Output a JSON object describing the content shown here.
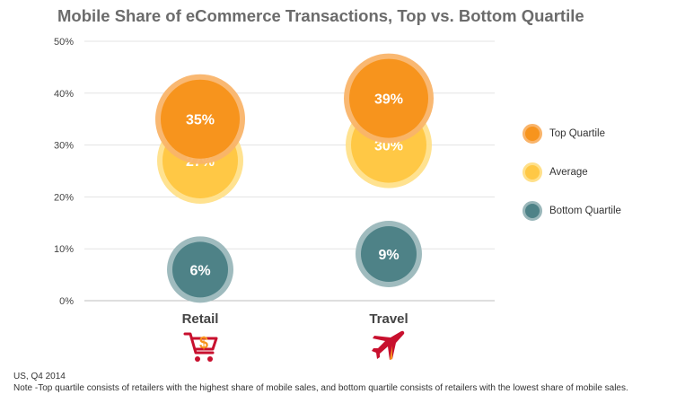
{
  "chart_data": {
    "type": "bubble",
    "title": "Mobile Share of eCommerce Transactions, Top vs. Bottom Quartile",
    "categories": [
      "Retail",
      "Travel"
    ],
    "ylim": [
      0,
      50
    ],
    "yticks": [
      "0%",
      "10%",
      "20%",
      "30%",
      "40%",
      "50%"
    ],
    "grid": true,
    "legend_position": "right",
    "series": [
      {
        "name": "Top Quartile",
        "values": [
          35,
          39
        ],
        "labels": [
          "35%",
          "39%"
        ],
        "color": "#f7941d",
        "ring": "#f9b46a"
      },
      {
        "name": "Average",
        "values": [
          27,
          30
        ],
        "labels": [
          "27%",
          "30%"
        ],
        "color": "#ffc845",
        "ring": "#ffe08a"
      },
      {
        "name": "Bottom Quartile",
        "values": [
          6,
          9
        ],
        "labels": [
          "6%",
          "9%"
        ],
        "color": "#4e8287",
        "ring": "#9ab7ba"
      }
    ]
  },
  "category_icons": [
    "shopping-cart-dollar-icon",
    "airplane-icon"
  ],
  "colors": {
    "cart": "#c8102e",
    "dollar": "#f7941d",
    "plane": "#c8102e",
    "plane_accent": "#f7941d"
  },
  "footer": {
    "line1": "US, Q4 2014",
    "line2": "Note -Top quartile consists of retailers with the highest share of mobile sales, and bottom quartile consists of retailers with the lowest share of mobile sales."
  }
}
